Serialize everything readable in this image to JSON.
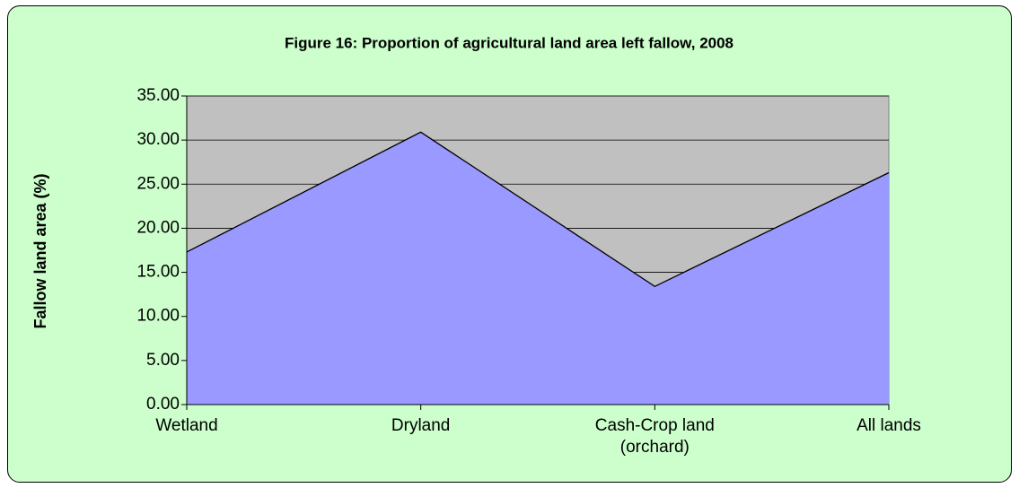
{
  "chart_data": {
    "type": "area",
    "title": "Figure 16: Proportion of agricultural land area left fallow, 2008",
    "y_label": "Fallow land area (%)",
    "categories": [
      "Wetland",
      "Dryland",
      "Cash-Crop land (orchard)",
      "All lands"
    ],
    "series": [
      {
        "name": "Fallow land area",
        "color": "#9999ff",
        "values": [
          17.3,
          30.9,
          13.4,
          26.3
        ]
      }
    ],
    "ylim": [
      0,
      35
    ],
    "yticks": [
      {
        "value": 0,
        "label": "0.00"
      },
      {
        "value": 5,
        "label": "5.00"
      },
      {
        "value": 10,
        "label": "10.00"
      },
      {
        "value": 15,
        "label": "15.00"
      },
      {
        "value": 20,
        "label": "20.00"
      },
      {
        "value": 25,
        "label": "25.00"
      },
      {
        "value": 30,
        "label": "30.00"
      },
      {
        "value": 35,
        "label": "35.00"
      }
    ],
    "grid": true,
    "plot_background": "#c0c0c0"
  }
}
